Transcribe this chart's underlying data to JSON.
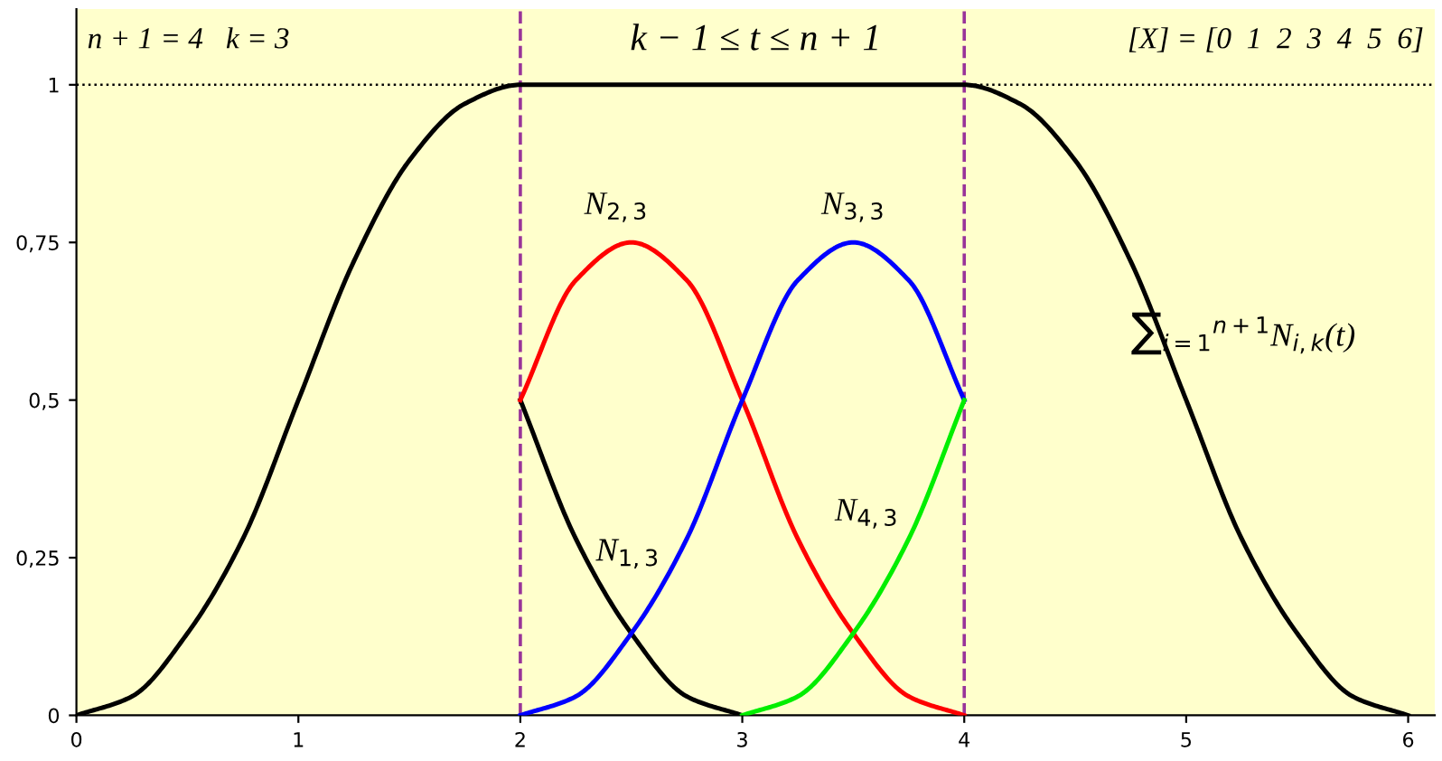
{
  "chart_data": {
    "type": "line",
    "title": "k − 1 ≤ t ≤ n + 1",
    "annotations": [
      "n + 1 = 4   k = 3",
      "[X] = [0  1  2  3  4  5  6]"
    ],
    "series": [
      {
        "name": "∑$_{i=1}$$^{n+1}$N$_{i,k}$(t)",
        "color": "#000000",
        "x": [
          0,
          0.25,
          0.5,
          0.75,
          1,
          1.25,
          1.5,
          1.75,
          2,
          2.5,
          3,
          3.5,
          4,
          4.25,
          4.5,
          4.75,
          5,
          5.25,
          5.5,
          5.75,
          6
        ],
        "values": [
          0,
          0.03,
          0.13,
          0.28,
          0.5,
          0.72,
          0.88,
          0.97,
          1,
          1,
          1,
          1,
          1,
          0.97,
          0.88,
          0.72,
          0.5,
          0.28,
          0.13,
          0.03,
          0
        ]
      },
      {
        "name": "N$_{1,3}$",
        "color": "#000000",
        "x": [
          2,
          2.25,
          2.5,
          2.75,
          3
        ],
        "values": [
          0.5,
          0.28,
          0.13,
          0.03,
          0
        ]
      },
      {
        "name": "N$_{2,3}$",
        "color": "#ff0000",
        "x": [
          2,
          2.25,
          2.5,
          2.75,
          3,
          3.25,
          3.5,
          3.75,
          4
        ],
        "values": [
          0.5,
          0.69,
          0.75,
          0.69,
          0.5,
          0.28,
          0.13,
          0.03,
          0
        ]
      },
      {
        "name": "N$_{3,3}$",
        "color": "#0000ff",
        "x": [
          2,
          2.25,
          2.5,
          2.75,
          3,
          3.25,
          3.5,
          3.75,
          4
        ],
        "values": [
          0,
          0.03,
          0.13,
          0.28,
          0.5,
          0.69,
          0.75,
          0.69,
          0.5
        ]
      },
      {
        "name": "N$_{4,3}$",
        "color": "#00ee00",
        "x": [
          3,
          3.25,
          3.5,
          3.75,
          4
        ],
        "values": [
          0,
          0.03,
          0.13,
          0.28,
          0.5
        ]
      }
    ],
    "ref_lines": [
      {
        "axis": "x",
        "value": 2,
        "color": "#993399",
        "line_style": "dashed"
      },
      {
        "axis": "x",
        "value": 4,
        "color": "#993399",
        "line_style": "dashed"
      },
      {
        "axis": "y",
        "value": 1,
        "color": "#000000",
        "line_style": "dotted"
      }
    ],
    "xlim": [
      0,
      6.12
    ],
    "ylim": [
      0,
      1.12
    ],
    "xticks": [
      0,
      1,
      2,
      3,
      4,
      5,
      6
    ],
    "yticks": [
      0,
      {
        "value": 0.25,
        "label": "0,25"
      },
      {
        "value": 0.5,
        "label": "0,5"
      },
      {
        "value": 0.75,
        "label": "0,75"
      },
      1
    ],
    "grid": false,
    "legend": false,
    "marker": "none",
    "line_style": "solid"
  }
}
